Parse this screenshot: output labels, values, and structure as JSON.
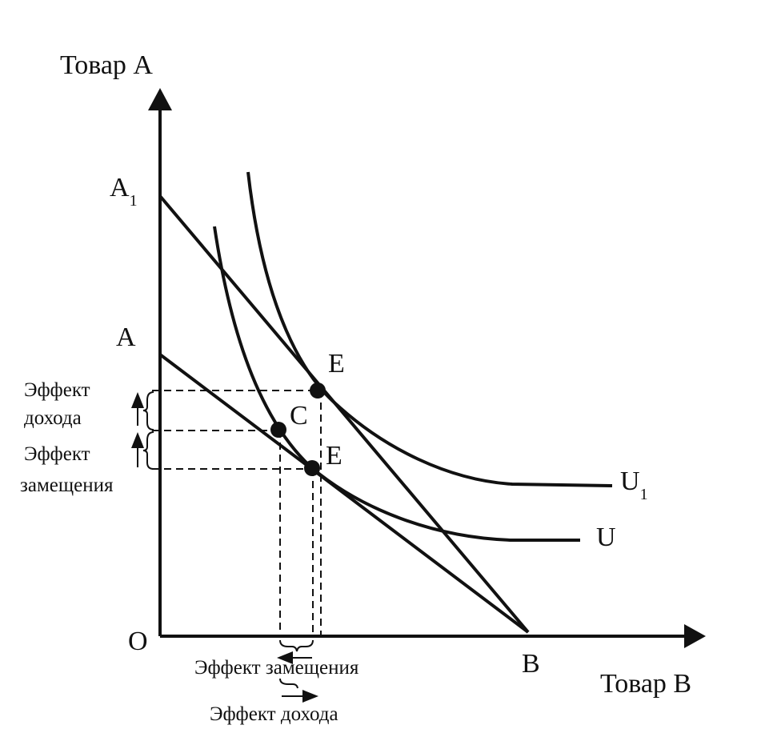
{
  "axes": {
    "y_label": "Товар А",
    "x_label": "Товар В",
    "origin": "О"
  },
  "points": [
    {
      "label": "A",
      "subscript": "1"
    },
    {
      "label": "А"
    },
    {
      "label": "В"
    },
    {
      "label": "E"
    },
    {
      "label": "C"
    },
    {
      "label": "E"
    }
  ],
  "curves": [
    {
      "label": "U",
      "subscript": "1"
    },
    {
      "label": "U"
    }
  ],
  "left_effects": [
    {
      "lines": [
        "Эффект",
        "дохода"
      ]
    },
    {
      "lines": [
        "Эффект",
        "замещения"
      ]
    }
  ],
  "bottom_effects": [
    "Эффект замещения",
    "Эффект дохода"
  ]
}
